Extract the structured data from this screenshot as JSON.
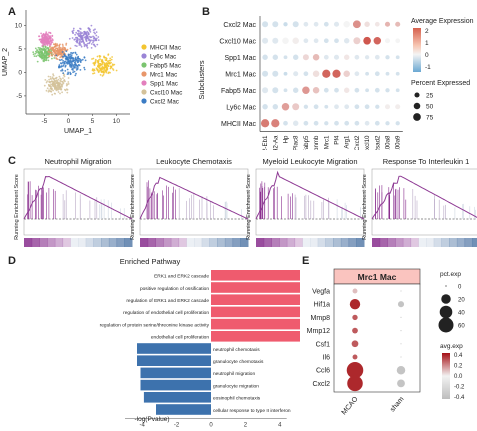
{
  "panels": {
    "A": {
      "letter": "A",
      "xlabel": "UMAP_1",
      "ylabel": "UMAP_2",
      "xticks": [
        "-5",
        "0",
        "5",
        "10"
      ],
      "yticks": [
        "-5",
        "0",
        "5",
        "10"
      ],
      "legend": [
        {
          "label": "MHCII Mac",
          "color": "#f3c530"
        },
        {
          "label": "Ly6c Mac",
          "color": "#9a84d6"
        },
        {
          "label": "Fabp5 Mac",
          "color": "#7bc46f"
        },
        {
          "label": "Mrc1 Mac",
          "color": "#e8966a"
        },
        {
          "label": "Spp1 Mac",
          "color": "#e37fbd"
        },
        {
          "label": "Cxcl10 Mac",
          "color": "#d4c29a"
        },
        {
          "label": "Cxcl2 Mac",
          "color": "#3b7cc4"
        }
      ]
    },
    "B": {
      "letter": "B",
      "ylabel": "Subclusters",
      "rows": [
        "Cxcl2 Mac",
        "Cxcl10 Mac",
        "Spp1 Mac",
        "Mrc1 Mac",
        "Fabp5 Mac",
        "Ly6c Mac",
        "MHCII Mac"
      ],
      "genes": [
        "H2-Eb1",
        "H2-Aa",
        "Hp",
        "Plac8",
        "Fabp5",
        "Gpnmb",
        "Mrc1",
        "Pf4",
        "Arg1",
        "Cxcl2",
        "Cxcl10",
        "Rsad2",
        "S100a8",
        "S100a9"
      ],
      "legend_avg_title": "Average Expression",
      "legend_avg_ticks": [
        "2",
        "1",
        "0",
        "-1"
      ],
      "legend_pct_title": "Percent Expressed",
      "legend_pct_ticks": [
        "25",
        "50",
        "75"
      ]
    },
    "C": {
      "letter": "C",
      "ylabel": "Running Enrichment Score",
      "titles": [
        "Neutrophil Migration",
        "Leukocyte Chemotaxis",
        "Myeloid Leukocyte Migration",
        "Response To Interleukin 1"
      ]
    },
    "D": {
      "letter": "D",
      "title": "Enriched Pathway",
      "xlabel": "-log(Pvalue)",
      "xticks": [
        "-4",
        "-2",
        "0",
        "2",
        "4",
        "6"
      ]
    },
    "E": {
      "letter": "E",
      "header": "Mrc1 Mac",
      "genes": [
        "Vegfa",
        "Hif1a",
        "Mmp8",
        "Mmp12",
        "Csf1",
        "Il6",
        "Ccl6",
        "Cxcl2"
      ],
      "conditions": [
        "MCAO",
        "sham"
      ],
      "legend_pct_title": "pct.exp",
      "legend_pct_ticks": [
        "0",
        "20",
        "40",
        "60"
      ],
      "legend_avg_title": "avg.exp",
      "legend_avg_ticks": [
        "0.4",
        "0.2",
        "0.0",
        "-0.2",
        "-0.4"
      ]
    }
  },
  "chart_data": [
    {
      "type": "scatter",
      "panel": "A",
      "xlabel": "UMAP_1",
      "ylabel": "UMAP_2",
      "xlim": [
        -8,
        12
      ],
      "ylim": [
        -8,
        12
      ],
      "series": [
        {
          "name": "MHCII Mac",
          "color": "#f3c530",
          "cx": 7.5,
          "cy": 1.5,
          "spread": 2.0
        },
        {
          "name": "Ly6c Mac",
          "color": "#9a84d6",
          "cx": 3.5,
          "cy": 7.5,
          "spread": 2.3
        },
        {
          "name": "Fabp5 Mac",
          "color": "#7bc46f",
          "cx": -5.0,
          "cy": 4.0,
          "spread": 1.6
        },
        {
          "name": "Mrc1 Mac",
          "color": "#e8966a",
          "cx": -2.0,
          "cy": 4.5,
          "spread": 1.6
        },
        {
          "name": "Spp1 Mac",
          "color": "#e37fbd",
          "cx": -4.5,
          "cy": 7.0,
          "spread": 1.3
        },
        {
          "name": "Cxcl10 Mac",
          "color": "#d4c29a",
          "cx": -2.5,
          "cy": -2.5,
          "spread": 2.0
        },
        {
          "name": "Cxcl2 Mac",
          "color": "#3b7cc4",
          "cx": 0.5,
          "cy": 2.0,
          "spread": 2.3
        }
      ]
    },
    {
      "type": "dotplot",
      "panel": "B",
      "rows": [
        "Cxcl2 Mac",
        "Cxcl10 Mac",
        "Spp1 Mac",
        "Mrc1 Mac",
        "Fabp5 Mac",
        "Ly6c Mac",
        "MHCII Mac"
      ],
      "cols": [
        "H2-Eb1",
        "H2-Aa",
        "Hp",
        "Plac8",
        "Fabp5",
        "Gpnmb",
        "Mrc1",
        "Pf4",
        "Arg1",
        "Cxcl2",
        "Cxcl10",
        "Rsad2",
        "S100a8",
        "S100a9"
      ],
      "avg_exp": [
        [
          -0.3,
          -0.3,
          -0.4,
          -0.3,
          -0.2,
          -0.2,
          -0.3,
          -0.2,
          0.0,
          1.4,
          0.3,
          0.2,
          0.9,
          0.8
        ],
        [
          -0.2,
          -0.2,
          0.0,
          0.1,
          -0.2,
          -0.2,
          -0.3,
          -0.3,
          -0.2,
          0.5,
          2.2,
          2.0,
          0.0,
          0.0
        ],
        [
          -0.3,
          -0.3,
          -0.3,
          -0.3,
          0.4,
          0.8,
          -0.2,
          -0.2,
          0.2,
          -0.2,
          -0.2,
          -0.2,
          -0.3,
          -0.3
        ],
        [
          -0.3,
          -0.3,
          -0.4,
          -0.2,
          -0.3,
          0.3,
          2.0,
          2.0,
          0.5,
          -0.2,
          -0.3,
          -0.3,
          -0.3,
          -0.3
        ],
        [
          -0.2,
          -0.3,
          -0.3,
          -0.3,
          1.3,
          0.7,
          -0.3,
          -0.3,
          0.2,
          -0.3,
          -0.3,
          -0.3,
          -0.3,
          -0.3
        ],
        [
          -0.3,
          -0.3,
          1.2,
          0.6,
          -0.3,
          -0.3,
          -0.3,
          -0.2,
          -0.2,
          -0.3,
          -0.3,
          -0.3,
          0.1,
          0.1
        ],
        [
          1.7,
          1.6,
          -0.3,
          -0.2,
          -0.3,
          -0.3,
          -0.3,
          -0.3,
          -0.3,
          -0.3,
          -0.2,
          -0.3,
          -0.3,
          -0.3
        ]
      ],
      "pct_exp": [
        [
          40,
          40,
          15,
          40,
          20,
          20,
          20,
          25,
          50,
          80,
          30,
          20,
          25,
          25
        ],
        [
          40,
          40,
          50,
          50,
          20,
          20,
          20,
          20,
          30,
          60,
          75,
          70,
          25,
          20
        ],
        [
          30,
          30,
          10,
          30,
          40,
          50,
          20,
          25,
          30,
          20,
          15,
          20,
          15,
          10
        ],
        [
          40,
          40,
          10,
          25,
          20,
          50,
          90,
          90,
          50,
          20,
          10,
          20,
          10,
          10
        ],
        [
          40,
          40,
          10,
          30,
          70,
          50,
          20,
          20,
          30,
          20,
          10,
          20,
          15,
          10
        ],
        [
          30,
          30,
          70,
          60,
          15,
          20,
          10,
          20,
          20,
          20,
          20,
          15,
          25,
          25
        ],
        [
          90,
          90,
          20,
          30,
          20,
          20,
          15,
          20,
          20,
          20,
          20,
          20,
          15,
          15
        ]
      ]
    },
    {
      "type": "line",
      "panel": "C",
      "ylabel": "Running Enrichment Score",
      "series": [
        {
          "name": "Neutrophil Migration",
          "peak_pos": 0.22,
          "peak": 0.6
        },
        {
          "name": "Leukocyte Chemotaxis",
          "peak_pos": 0.18,
          "peak": 0.58
        },
        {
          "name": "Myeloid Leukocyte Migration",
          "peak_pos": 0.2,
          "peak": 0.6
        },
        {
          "name": "Response To Interleukin 1",
          "peak_pos": 0.26,
          "peak": 0.6
        }
      ]
    },
    {
      "type": "bar",
      "panel": "D",
      "title": "Enriched Pathway",
      "xlabel": "-log(Pvalue)",
      "xlim": [
        -5,
        7.5
      ],
      "categories": [
        "ERK1 and ERK2 cascade",
        "positive regulation of ossification",
        "regulation of ERK1 and ERK2 cascade",
        "regulation of endothelial cell proliferation",
        "regulation of protein serine/threonine kinase activity",
        "endothelial cell proliferation",
        "neutrophil chemotaxis",
        "granulocyte chemotaxis",
        "neutrophil migration",
        "granulocyte migration",
        "eosinophil chemotaxis",
        "cellular response to type II interferon"
      ],
      "values": [
        7.0,
        6.0,
        5.9,
        5.7,
        5.4,
        5.3,
        -4.3,
        -4.3,
        -4.1,
        -4.1,
        -3.9,
        -3.2
      ],
      "colors": {
        "positive": "#ef5b6e",
        "negative": "#3d72ad"
      }
    },
    {
      "type": "dotplot",
      "panel": "E",
      "rows": [
        "Vegfa",
        "Hif1a",
        "Mmp8",
        "Mmp12",
        "Csf1",
        "Il6",
        "Ccl6",
        "Cxcl2"
      ],
      "cols": [
        "MCAO",
        "sham"
      ],
      "avg_exp": [
        [
          0.1,
          -0.4
        ],
        [
          0.4,
          -0.4
        ],
        [
          0.3,
          -0.4
        ],
        [
          0.3,
          -0.4
        ],
        [
          0.3,
          -0.4
        ],
        [
          0.3,
          -0.4
        ],
        [
          0.4,
          -0.4
        ],
        [
          0.4,
          -0.4
        ]
      ],
      "pct_exp": [
        [
          3,
          0
        ],
        [
          25,
          6
        ],
        [
          4,
          0
        ],
        [
          5,
          0
        ],
        [
          8,
          0
        ],
        [
          3,
          0
        ],
        [
          75,
          15
        ],
        [
          65,
          12
        ]
      ]
    }
  ]
}
